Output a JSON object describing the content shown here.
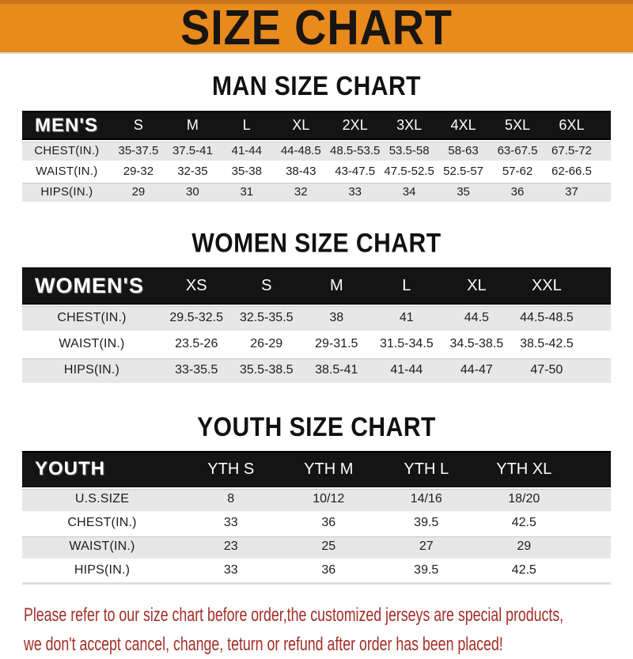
{
  "header": {
    "title": "SIZE CHART"
  },
  "colors": {
    "banner_orange": "#E98A1D",
    "banner_border": "#C9731A",
    "bar_black": "#141414",
    "row_gray": "#E7E7E7",
    "notice_red": "#A42F28"
  },
  "sections": [
    {
      "title": "MAN SIZE CHART",
      "table": {
        "label": "MEN'S",
        "columns": [
          "S",
          "M",
          "L",
          "XL",
          "2XL",
          "3XL",
          "4XL",
          "5XL",
          "6XL"
        ],
        "rows": [
          {
            "label": "CHEST(IN.)",
            "values": [
              "35-37.5",
              "37.5-41",
              "41-44",
              "44-48.5",
              "48.5-53.5",
              "53.5-58",
              "58-63",
              "63-67.5",
              "67.5-72"
            ]
          },
          {
            "label": "WAIST(IN.)",
            "values": [
              "29-32",
              "32-35",
              "35-38",
              "38-43",
              "43-47.5",
              "47.5-52.5",
              "52.5-57",
              "57-62",
              "62-66.5"
            ]
          },
          {
            "label": "HIPS(IN.)",
            "values": [
              "29",
              "30",
              "31",
              "32",
              "33",
              "34",
              "35",
              "36",
              "37"
            ]
          }
        ]
      }
    },
    {
      "title": "WOMEN SIZE CHART",
      "table": {
        "label": "WOMEN'S",
        "columns": [
          "XS",
          "S",
          "M",
          "L",
          "XL",
          "XXL"
        ],
        "rows": [
          {
            "label": "CHEST(IN.)",
            "values": [
              "29.5-32.5",
              "32.5-35.5",
              "38",
              "41",
              "44.5",
              "44.5-48.5"
            ]
          },
          {
            "label": "WAIST(IN.)",
            "values": [
              "23.5-26",
              "26-29",
              "29-31.5",
              "31.5-34.5",
              "34.5-38.5",
              "38.5-42.5"
            ]
          },
          {
            "label": "HIPS(IN.)",
            "values": [
              "33-35.5",
              "35.5-38.5",
              "38.5-41",
              "41-44",
              "44-47",
              "47-50"
            ]
          }
        ]
      }
    },
    {
      "title": "YOUTH SIZE CHART",
      "table": {
        "label": "YOUTH",
        "columns": [
          "YTH S",
          "YTH M",
          "YTH L",
          "YTH XL"
        ],
        "rows": [
          {
            "label": "U.S.SIZE",
            "values": [
              "8",
              "10/12",
              "14/16",
              "18/20"
            ]
          },
          {
            "label": "CHEST(IN.)",
            "values": [
              "33",
              "36",
              "39.5",
              "42.5"
            ]
          },
          {
            "label": "WAIST(IN.)",
            "values": [
              "23",
              "25",
              "27",
              "29"
            ]
          },
          {
            "label": "HIPS(IN.)",
            "values": [
              "33",
              "36",
              "39.5",
              "42.5"
            ]
          }
        ]
      }
    }
  ],
  "footer": {
    "line1": "Please refer to our size chart before order,the customized jerseys are special products,",
    "line2": "we don't accept cancel, change, teturn or refund after order has been placed!"
  }
}
